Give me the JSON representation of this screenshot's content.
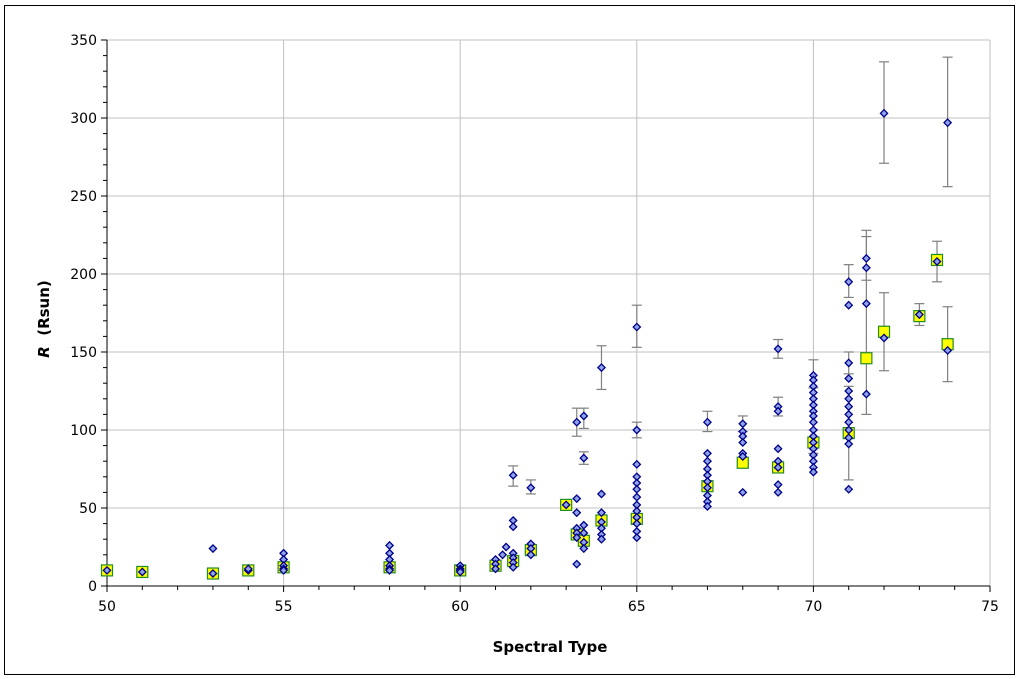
{
  "chart_data": {
    "type": "scatter",
    "title": "",
    "xlabel": "Spectral Type",
    "ylabel_italic": "R",
    "ylabel_rest": "  (Rsun)",
    "xlim": [
      50,
      75
    ],
    "ylim": [
      0,
      350
    ],
    "x_ticks": [
      50,
      55,
      60,
      65,
      70,
      75
    ],
    "y_ticks": [
      0,
      50,
      100,
      150,
      200,
      250,
      300,
      350
    ],
    "grid": true,
    "legend": "none",
    "colors": {
      "individual_marker_fill": "#8fa3e6",
      "individual_marker_edge": "#00008b",
      "mean_marker_fill": "#ffff00",
      "mean_marker_edge": "#228b22",
      "error_bar": "#808080",
      "grid": "#c0c0c0"
    },
    "series": [
      {
        "marker": "diamond",
        "points": [
          [
            50,
            10
          ],
          [
            51,
            9
          ],
          [
            53,
            24
          ],
          [
            53,
            8
          ],
          [
            54,
            10
          ],
          [
            54,
            11
          ],
          [
            55,
            21
          ],
          [
            55,
            17
          ],
          [
            55,
            13
          ],
          [
            55,
            11
          ],
          [
            55,
            10
          ],
          [
            58,
            26
          ],
          [
            58,
            21
          ],
          [
            58,
            17
          ],
          [
            58,
            13
          ],
          [
            58,
            11
          ],
          [
            58,
            10
          ],
          [
            60,
            13
          ],
          [
            60,
            11
          ],
          [
            60,
            10
          ],
          [
            60,
            9
          ],
          [
            61,
            17
          ],
          [
            61,
            14
          ],
          [
            61,
            11
          ],
          [
            61.2,
            20
          ],
          [
            61.3,
            25
          ],
          [
            61.5,
            71
          ],
          [
            61.5,
            42
          ],
          [
            61.5,
            38
          ],
          [
            61.5,
            21
          ],
          [
            61.5,
            18
          ],
          [
            61.5,
            15
          ],
          [
            61.5,
            12
          ],
          [
            62,
            63
          ],
          [
            62,
            27
          ],
          [
            62,
            24
          ],
          [
            62,
            20
          ],
          [
            63,
            52
          ],
          [
            63.3,
            105
          ],
          [
            63.3,
            56
          ],
          [
            63.3,
            47
          ],
          [
            63.3,
            37
          ],
          [
            63.3,
            34
          ],
          [
            63.3,
            31
          ],
          [
            63.3,
            14
          ],
          [
            63.5,
            109
          ],
          [
            63.5,
            82
          ],
          [
            63.5,
            39
          ],
          [
            63.5,
            34
          ],
          [
            63.5,
            28
          ],
          [
            63.5,
            24
          ],
          [
            64,
            140
          ],
          [
            64,
            59
          ],
          [
            64,
            47
          ],
          [
            64,
            41
          ],
          [
            64,
            37
          ],
          [
            64,
            33
          ],
          [
            64,
            30
          ],
          [
            65,
            166
          ],
          [
            65,
            100
          ],
          [
            65,
            78
          ],
          [
            65,
            70
          ],
          [
            65,
            66
          ],
          [
            65,
            62
          ],
          [
            65,
            57
          ],
          [
            65,
            52
          ],
          [
            65,
            48
          ],
          [
            65,
            44
          ],
          [
            65,
            40
          ],
          [
            65,
            35
          ],
          [
            65,
            31
          ],
          [
            67,
            105
          ],
          [
            67,
            85
          ],
          [
            67,
            80
          ],
          [
            67,
            75
          ],
          [
            67,
            71
          ],
          [
            67,
            67
          ],
          [
            67,
            63
          ],
          [
            67,
            58
          ],
          [
            67,
            54
          ],
          [
            67,
            51
          ],
          [
            68,
            104
          ],
          [
            68,
            99
          ],
          [
            68,
            96
          ],
          [
            68,
            92
          ],
          [
            68,
            85
          ],
          [
            68,
            83
          ],
          [
            68,
            60
          ],
          [
            69,
            152
          ],
          [
            69,
            115
          ],
          [
            69,
            112
          ],
          [
            69,
            88
          ],
          [
            69,
            80
          ],
          [
            69,
            76
          ],
          [
            69,
            65
          ],
          [
            69,
            60
          ],
          [
            70,
            135
          ],
          [
            70,
            132
          ],
          [
            70,
            128
          ],
          [
            70,
            124
          ],
          [
            70,
            120
          ],
          [
            70,
            116
          ],
          [
            70,
            112
          ],
          [
            70,
            109
          ],
          [
            70,
            105
          ],
          [
            70,
            100
          ],
          [
            70,
            96
          ],
          [
            70,
            92
          ],
          [
            70,
            88
          ],
          [
            70,
            84
          ],
          [
            70,
            80
          ],
          [
            70,
            76
          ],
          [
            70,
            73
          ],
          [
            71,
            195
          ],
          [
            71,
            180
          ],
          [
            71,
            143
          ],
          [
            71,
            133
          ],
          [
            71,
            125
          ],
          [
            71,
            120
          ],
          [
            71,
            115
          ],
          [
            71,
            110
          ],
          [
            71,
            105
          ],
          [
            71,
            100
          ],
          [
            71,
            95
          ],
          [
            71,
            91
          ],
          [
            71,
            62
          ],
          [
            71.5,
            210
          ],
          [
            71.5,
            204
          ],
          [
            71.5,
            181
          ],
          [
            71.5,
            123
          ],
          [
            72,
            303
          ],
          [
            72,
            159
          ],
          [
            73,
            174
          ],
          [
            73.5,
            208
          ],
          [
            73.8,
            297
          ],
          [
            73.8,
            151
          ]
        ]
      },
      {
        "marker": "square",
        "points": [
          [
            50,
            10
          ],
          [
            51,
            9
          ],
          [
            53,
            8
          ],
          [
            54,
            10
          ],
          [
            55,
            12
          ],
          [
            58,
            12
          ],
          [
            60,
            10
          ],
          [
            61,
            13
          ],
          [
            61.5,
            16
          ],
          [
            62,
            23
          ],
          [
            63,
            52
          ],
          [
            63.3,
            33
          ],
          [
            63.5,
            29
          ],
          [
            64,
            42
          ],
          [
            65,
            43
          ],
          [
            67,
            64
          ],
          [
            68,
            79
          ],
          [
            69,
            76
          ],
          [
            70,
            92
          ],
          [
            71,
            98
          ],
          [
            71.5,
            146
          ],
          [
            72,
            163
          ],
          [
            73,
            173
          ],
          [
            73.5,
            209
          ],
          [
            73.8,
            155
          ]
        ]
      }
    ],
    "error_bars": [
      [
        61.5,
        71,
        64,
        77
      ],
      [
        62,
        63,
        59,
        68
      ],
      [
        63.3,
        105,
        96,
        114
      ],
      [
        63.5,
        109,
        101,
        114
      ],
      [
        63.5,
        82,
        78,
        86
      ],
      [
        64,
        140,
        126,
        154
      ],
      [
        65,
        166,
        153,
        180
      ],
      [
        65,
        100,
        95,
        105
      ],
      [
        67,
        105,
        99,
        112
      ],
      [
        68,
        104,
        99,
        109
      ],
      [
        69,
        152,
        146,
        158
      ],
      [
        69,
        115,
        109,
        121
      ],
      [
        70,
        135,
        127,
        145
      ],
      [
        70,
        92,
        85,
        100
      ],
      [
        71,
        195,
        185,
        206
      ],
      [
        71,
        98,
        68,
        128
      ],
      [
        71,
        143,
        136,
        150
      ],
      [
        71.5,
        146,
        110,
        228
      ],
      [
        71.5,
        210,
        196,
        224
      ],
      [
        72,
        303,
        271,
        336
      ],
      [
        72,
        163,
        138,
        188
      ],
      [
        73,
        174,
        167,
        181
      ],
      [
        73.5,
        208,
        195,
        221
      ],
      [
        73.8,
        297,
        256,
        339
      ],
      [
        73.8,
        155,
        131,
        179
      ]
    ]
  }
}
